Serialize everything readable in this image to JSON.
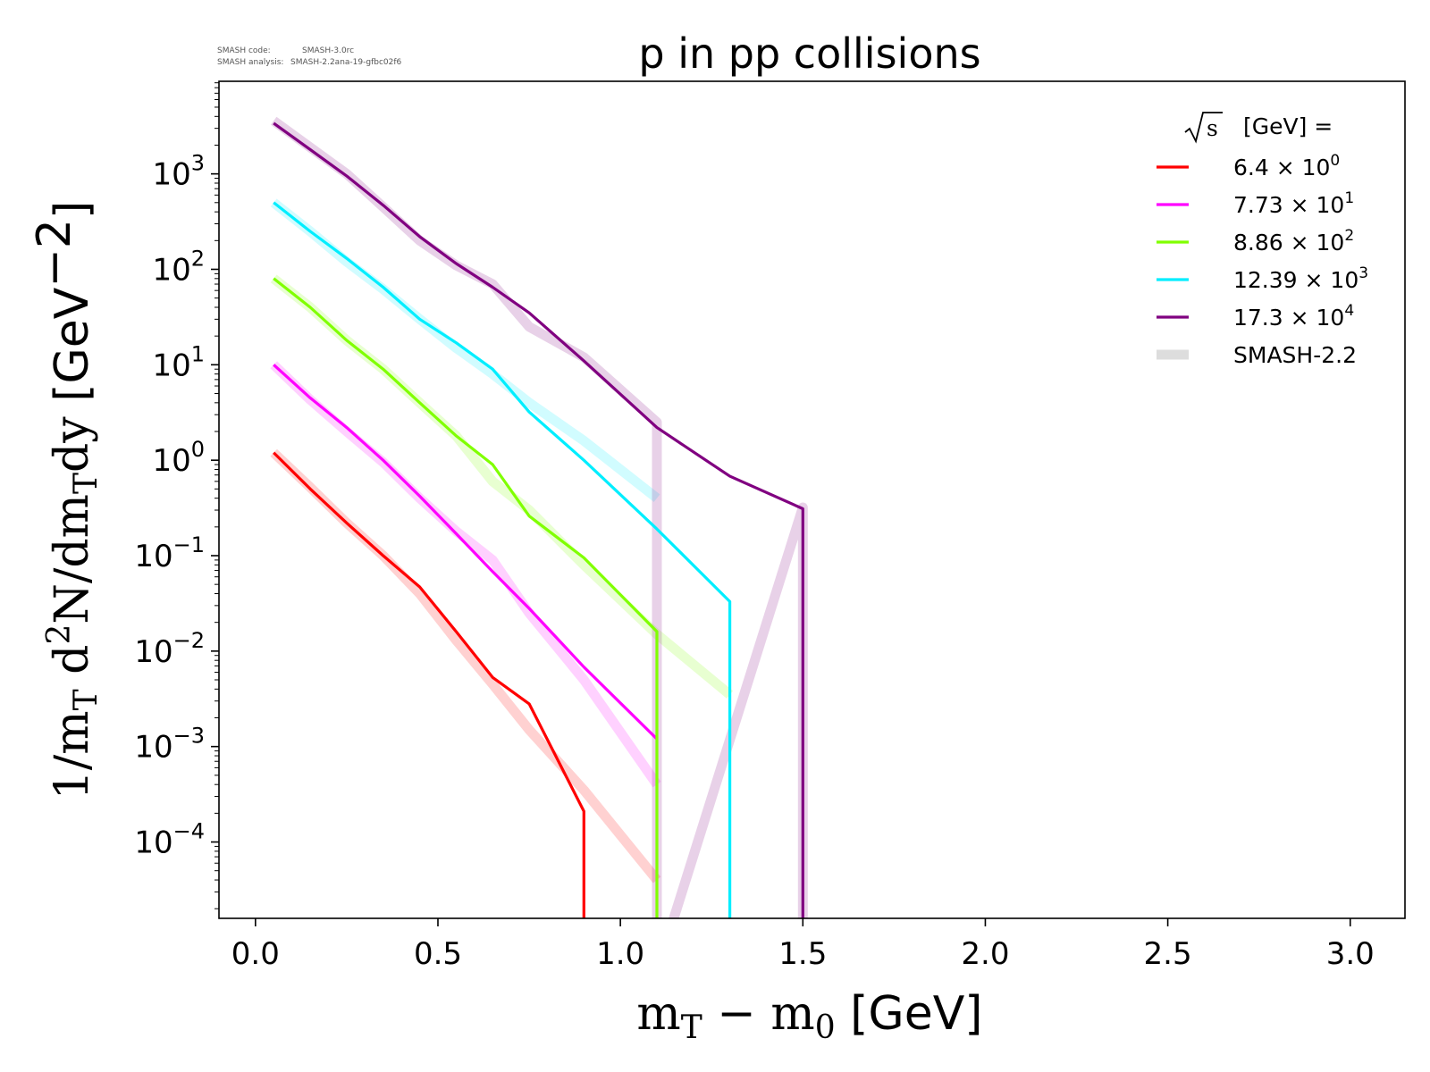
{
  "meta": {
    "code_key": "SMASH code:",
    "code_value": "SMASH-3.0rc",
    "analysis_key": "SMASH analysis:",
    "analysis_value": "SMASH-2.2ana-19-gfbc02f6"
  },
  "chart_data": {
    "type": "line",
    "title": "p in pp collisions",
    "xlabel": "m_T - m_0 [GeV]",
    "xlabel_parts": {
      "m": "m",
      "T": "T",
      "minus": " − ",
      "m0": "m",
      "zero": "0",
      "unit": " [GeV]"
    },
    "ylabel": "1/m_T d^2N/dm_T dy [GeV^-2]",
    "ylabel_parts": {
      "pre": "1/m",
      "T1": "T",
      "d": " d",
      "sq": "2",
      "N": "N/dm",
      "T2": "T",
      "dy": "dy",
      "unit_open": " [GeV",
      "unit_exp": "−2",
      "unit_close": "]"
    },
    "xlim": [
      -0.1,
      3.15
    ],
    "ylim_log10": [
      -4.8,
      3.97
    ],
    "yscale": "log",
    "grid": false,
    "legend_position": "top-right",
    "legend_title": "[GeV] =",
    "legend_title_sqrt": "s",
    "x_ticks": [
      {
        "value": 0.0,
        "label": "0.0"
      },
      {
        "value": 0.5,
        "label": "0.5"
      },
      {
        "value": 1.0,
        "label": "1.0"
      },
      {
        "value": 1.5,
        "label": "1.5"
      },
      {
        "value": 2.0,
        "label": "2.0"
      },
      {
        "value": 2.5,
        "label": "2.5"
      },
      {
        "value": 3.0,
        "label": "3.0"
      }
    ],
    "y_ticks": [
      {
        "exp": 3,
        "label_base": "10",
        "label_exp": "3"
      },
      {
        "exp": 2,
        "label_base": "10",
        "label_exp": "2"
      },
      {
        "exp": 1,
        "label_base": "10",
        "label_exp": "1"
      },
      {
        "exp": 0,
        "label_base": "10",
        "label_exp": "0"
      },
      {
        "exp": -1,
        "label_base": "10",
        "label_exp": "−1"
      },
      {
        "exp": -2,
        "label_base": "10",
        "label_exp": "−2"
      },
      {
        "exp": -3,
        "label_base": "10",
        "label_exp": "−3"
      },
      {
        "exp": -4,
        "label_base": "10",
        "label_exp": "−4"
      }
    ],
    "series": [
      {
        "name_base": "6.4",
        "name_exp": "0",
        "color": "#ff0000",
        "x": [
          0.05,
          0.15,
          0.25,
          0.35,
          0.45,
          0.55,
          0.65,
          0.75,
          0.9,
          0.9
        ],
        "y": [
          1.2,
          0.5,
          0.22,
          0.1,
          0.047,
          0.016,
          0.0053,
          0.0028,
          0.00021,
          1e-06
        ],
        "ref_x": [
          0.05,
          0.15,
          0.25,
          0.35,
          0.45,
          0.55,
          0.65,
          0.75,
          0.9,
          1.1
        ],
        "ref_y": [
          1.2,
          0.52,
          0.22,
          0.1,
          0.04,
          0.013,
          0.0045,
          0.0015,
          0.00035,
          4e-05
        ]
      },
      {
        "name_base": "7.73",
        "name_exp": "1",
        "color": "#ff00ff",
        "x": [
          0.05,
          0.15,
          0.25,
          0.35,
          0.45,
          0.55,
          0.65,
          0.75,
          0.9,
          1.1
        ],
        "y": [
          10,
          4.5,
          2.2,
          1.0,
          0.42,
          0.17,
          0.068,
          0.028,
          0.0068,
          0.0012
        ],
        "ref_x": [
          0.05,
          0.15,
          0.25,
          0.35,
          0.45,
          0.55,
          0.65,
          0.75,
          0.9,
          1.1
        ],
        "ref_y": [
          10,
          4.3,
          2.0,
          0.95,
          0.4,
          0.18,
          0.09,
          0.025,
          0.005,
          0.0004
        ]
      },
      {
        "name_base": "8.86",
        "name_exp": "2",
        "color": "#80ff00",
        "x": [
          0.05,
          0.15,
          0.25,
          0.35,
          0.45,
          0.55,
          0.65,
          0.75,
          0.9,
          1.1,
          1.1
        ],
        "y": [
          80,
          40,
          18,
          9,
          4,
          1.8,
          0.9,
          0.26,
          0.095,
          0.016,
          1e-06
        ],
        "ref_x": [
          0.05,
          0.15,
          0.25,
          0.35,
          0.45,
          0.55,
          0.65,
          0.75,
          0.9,
          1.1,
          1.3
        ],
        "ref_y": [
          80,
          40,
          18,
          9,
          4,
          1.8,
          0.6,
          0.3,
          0.08,
          0.015,
          0.0035
        ]
      },
      {
        "name_base": "12.39",
        "name_exp": "3",
        "color": "#00eeff",
        "x": [
          0.05,
          0.15,
          0.25,
          0.35,
          0.45,
          0.55,
          0.65,
          0.75,
          0.9,
          1.1,
          1.3,
          1.3
        ],
        "y": [
          500,
          250,
          130,
          65,
          30,
          17,
          9,
          3.2,
          1.0,
          0.19,
          0.033,
          1e-06
        ],
        "ref_x": [
          0.05,
          0.15,
          0.25,
          0.35,
          0.45,
          0.55,
          0.65,
          0.75,
          0.9,
          1.1
        ],
        "ref_y": [
          500,
          250,
          120,
          62,
          30,
          15,
          8,
          4,
          1.6,
          0.4
        ]
      },
      {
        "name_base": "17.3",
        "name_exp": "4",
        "color": "#800080",
        "x": [
          0.05,
          0.15,
          0.25,
          0.35,
          0.45,
          0.55,
          0.65,
          0.75,
          0.9,
          1.1,
          1.3,
          1.5,
          1.5
        ],
        "y": [
          3400,
          1800,
          950,
          470,
          220,
          115,
          65,
          35,
          11,
          2.2,
          0.68,
          0.31,
          1e-06
        ],
        "ref_x": [
          0.05,
          0.15,
          0.25,
          0.35,
          0.45,
          0.55,
          0.65,
          0.75,
          0.9,
          1.1,
          1.1,
          1.5,
          1.5
        ],
        "ref_y": [
          3600,
          1900,
          1000,
          450,
          200,
          110,
          70,
          25,
          12,
          2.5,
          1e-06,
          0.32,
          1e-06
        ]
      }
    ],
    "reference_legend_label": "SMASH-2.2",
    "reference_legend_color": "#dddddd",
    "times_symbol": "×"
  }
}
